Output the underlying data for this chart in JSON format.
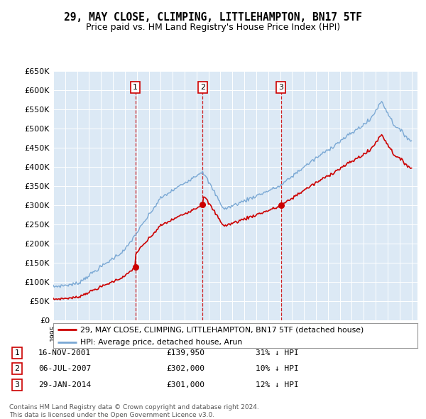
{
  "title": "29, MAY CLOSE, CLIMPING, LITTLEHAMPTON, BN17 5TF",
  "subtitle": "Price paid vs. HM Land Registry's House Price Index (HPI)",
  "legend_line1": "29, MAY CLOSE, CLIMPING, LITTLEHAMPTON, BN17 5TF (detached house)",
  "legend_line2": "HPI: Average price, detached house, Arun",
  "sales": [
    {
      "num": 1,
      "date": "2001-11-16",
      "price": 139950,
      "label": "16-NOV-2001",
      "price_label": "£139,950",
      "pct_label": "31% ↓ HPI"
    },
    {
      "num": 2,
      "date": "2007-07-06",
      "price": 302000,
      "label": "06-JUL-2007",
      "price_label": "£302,000",
      "pct_label": "10% ↓ HPI"
    },
    {
      "num": 3,
      "date": "2014-01-29",
      "price": 301000,
      "label": "29-JAN-2014",
      "price_label": "£301,000",
      "pct_label": "12% ↓ HPI"
    }
  ],
  "footer_line1": "Contains HM Land Registry data © Crown copyright and database right 2024.",
  "footer_line2": "This data is licensed under the Open Government Licence v3.0.",
  "hpi_color": "#7aa8d4",
  "price_color": "#cc0000",
  "vline_color": "#cc0000",
  "plot_bg_color": "#dce9f5",
  "ylim": [
    0,
    650000
  ],
  "yticks": [
    0,
    50000,
    100000,
    150000,
    200000,
    250000,
    300000,
    350000,
    400000,
    450000,
    500000,
    550000,
    600000,
    650000
  ],
  "box_color": "#cc0000",
  "sale_years": [
    2001.876,
    2007.506,
    2014.077
  ],
  "sale_prices": [
    139950,
    302000,
    301000
  ]
}
